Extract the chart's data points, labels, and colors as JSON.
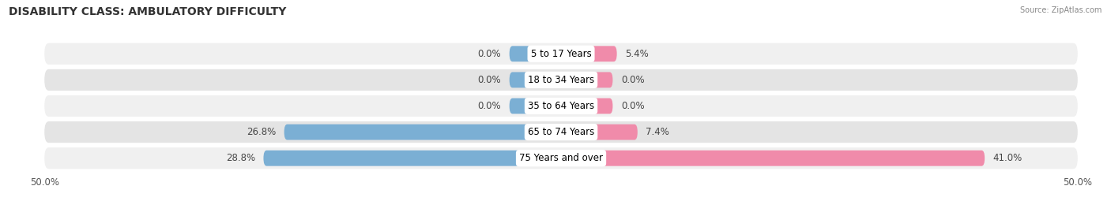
{
  "title": "DISABILITY CLASS: AMBULATORY DIFFICULTY",
  "source": "Source: ZipAtlas.com",
  "categories": [
    "5 to 17 Years",
    "18 to 34 Years",
    "35 to 64 Years",
    "65 to 74 Years",
    "75 Years and over"
  ],
  "male_values": [
    0.0,
    0.0,
    0.0,
    26.8,
    28.8
  ],
  "female_values": [
    5.4,
    0.0,
    0.0,
    7.4,
    41.0
  ],
  "male_color": "#7bafd4",
  "female_color": "#f08baa",
  "row_bg_color_odd": "#f0f0f0",
  "row_bg_color_even": "#e4e4e4",
  "x_min": -50.0,
  "x_max": 50.0,
  "x_tick_labels": [
    "50.0%",
    "50.0%"
  ],
  "label_fontsize": 8.5,
  "title_fontsize": 10,
  "source_fontsize": 7,
  "legend_fontsize": 9,
  "bar_height": 0.6,
  "min_bar_width": 5.0
}
